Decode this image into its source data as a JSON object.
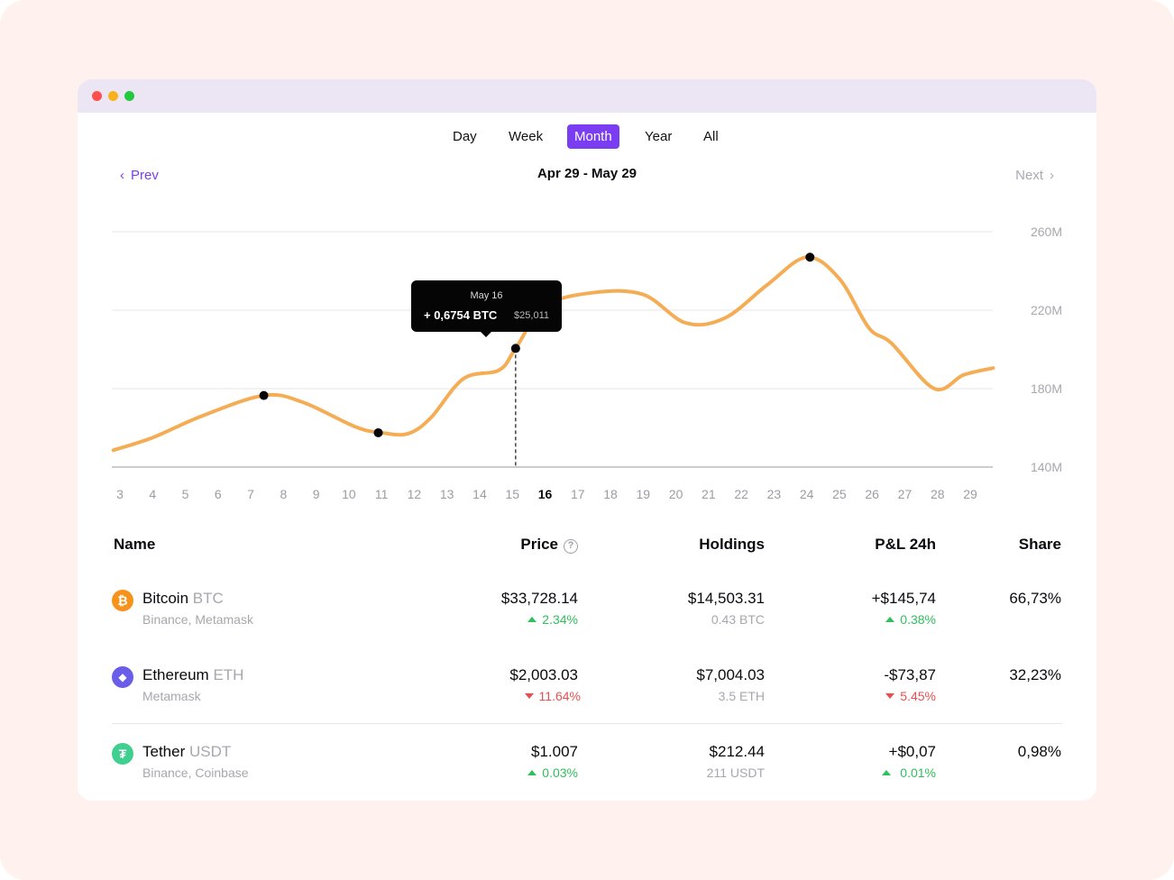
{
  "tabs": [
    {
      "label": "Day",
      "active": false
    },
    {
      "label": "Week",
      "active": false
    },
    {
      "label": "Month",
      "active": true
    },
    {
      "label": "Year",
      "active": false
    },
    {
      "label": "All",
      "active": false
    }
  ],
  "nav": {
    "prev_label": "Prev",
    "next_label": "Next",
    "range": "Apr 29 - May 29"
  },
  "colors": {
    "accent": "#7b3df1",
    "line": "#f5ad55",
    "up": "#2fbf5c",
    "down": "#eb4e4e"
  },
  "chart_data": {
    "type": "line",
    "title": "",
    "xlabel": "",
    "ylabel": "",
    "categories": [
      "3",
      "4",
      "5",
      "6",
      "7",
      "8",
      "9",
      "10",
      "11",
      "12",
      "13",
      "14",
      "15",
      "16",
      "17",
      "18",
      "19",
      "20",
      "21",
      "22",
      "23",
      "24",
      "25",
      "26",
      "27",
      "28",
      "29"
    ],
    "y_ticks": [
      "260M",
      "220M",
      "180M",
      "140M"
    ],
    "ylim": [
      140,
      260
    ],
    "y_unit": "M",
    "active_category": "16",
    "series": [
      {
        "name": "",
        "points": [
          {
            "x": 2.8,
            "y": 148.6
          },
          {
            "x": 4.0,
            "y": 155.0
          },
          {
            "x": 5.5,
            "y": 166.0
          },
          {
            "x": 7.4,
            "y": 176.5
          },
          {
            "x": 8.6,
            "y": 173.0
          },
          {
            "x": 10.2,
            "y": 160.5
          },
          {
            "x": 11.0,
            "y": 157.5
          },
          {
            "x": 11.8,
            "y": 157.0
          },
          {
            "x": 12.5,
            "y": 165.0
          },
          {
            "x": 13.5,
            "y": 185.0
          },
          {
            "x": 14.6,
            "y": 189.5
          },
          {
            "x": 15.1,
            "y": 200.5
          },
          {
            "x": 16.0,
            "y": 222.0
          },
          {
            "x": 17.5,
            "y": 229.0
          },
          {
            "x": 19.0,
            "y": 228.0
          },
          {
            "x": 20.3,
            "y": 213.5
          },
          {
            "x": 21.5,
            "y": 216.0
          },
          {
            "x": 22.8,
            "y": 233.0
          },
          {
            "x": 24.0,
            "y": 247.0
          },
          {
            "x": 25.0,
            "y": 236.0
          },
          {
            "x": 25.9,
            "y": 211.0
          },
          {
            "x": 26.6,
            "y": 203.0
          },
          {
            "x": 27.9,
            "y": 180.0
          },
          {
            "x": 28.8,
            "y": 187.0
          },
          {
            "x": 29.7,
            "y": 190.5
          }
        ]
      }
    ],
    "markers": [
      {
        "x": 7.4,
        "y": 176.5
      },
      {
        "x": 10.9,
        "y": 157.5
      },
      {
        "x": 15.1,
        "y": 200.5
      },
      {
        "x": 24.1,
        "y": 247.0
      }
    ],
    "grid": true,
    "tooltip": {
      "x": 15.1,
      "date": "May 16",
      "amount": "+ 0,6754 BTC",
      "usd": "$25,011"
    }
  },
  "table": {
    "headers": {
      "name": "Name",
      "price": "Price",
      "holdings": "Holdings",
      "pnl": "P&L 24h",
      "share": "Share"
    },
    "help_icon": "question-circle-icon",
    "rows": [
      {
        "name": "Bitcoin",
        "ticker": "BTC",
        "sources": "Binance, Metamask",
        "icon": "bitcoin-icon",
        "icon_glyph": "₿",
        "icon_color": "#f7931a",
        "price": "$33,728.14",
        "price_change": "2.34%",
        "price_dir": "up",
        "holdings": "$14,503.31",
        "holdings_sub": "0.43 BTC",
        "pnl": "+$145,74",
        "pnl_change": "0.38%",
        "pnl_dir": "up",
        "share": "66,73%"
      },
      {
        "name": "Ethereum",
        "ticker": "ETH",
        "sources": "Metamask",
        "icon": "ethereum-icon",
        "icon_glyph": "◆",
        "icon_color": "#6a5de8",
        "price": "$2,003.03",
        "price_change": "11.64%",
        "price_dir": "down",
        "holdings": "$7,004.03",
        "holdings_sub": "3.5 ETH",
        "pnl": "-$73,87",
        "pnl_change": "5.45%",
        "pnl_dir": "down",
        "share": "32,23%"
      },
      {
        "name": "Tether",
        "ticker": "USDT",
        "sources": "Binance, Coinbase",
        "icon": "tether-icon",
        "icon_glyph": "₮",
        "icon_color": "#3fcf8e",
        "price": "$1.007",
        "price_change": "0.03%",
        "price_dir": "up",
        "holdings": "$212.44",
        "holdings_sub": "211 USDT",
        "pnl": "+$0,07",
        "pnl_change": "0.01%",
        "pnl_dir": "up",
        "share": "0,98%"
      }
    ]
  }
}
